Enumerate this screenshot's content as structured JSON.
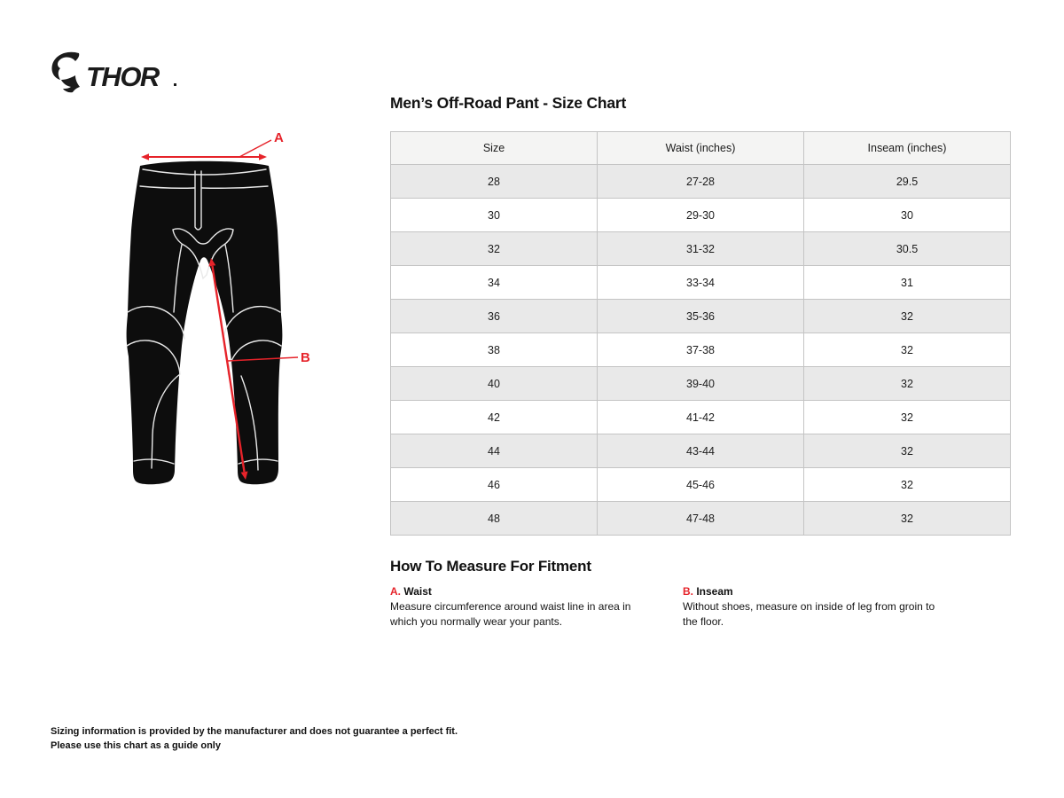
{
  "brand": {
    "name": "THOR",
    "icon": "thor-ram-icon"
  },
  "size_chart": {
    "title": "Men’s Off-Road Pant - Size Chart",
    "columns": [
      "Size",
      "Waist (inches)",
      "Inseam (inches)"
    ],
    "rows": [
      [
        "28",
        "27-28",
        "29.5"
      ],
      [
        "30",
        "29-30",
        "30"
      ],
      [
        "32",
        "31-32",
        "30.5"
      ],
      [
        "34",
        "33-34",
        "31"
      ],
      [
        "36",
        "35-36",
        "32"
      ],
      [
        "38",
        "37-38",
        "32"
      ],
      [
        "40",
        "39-40",
        "32"
      ],
      [
        "42",
        "41-42",
        "32"
      ],
      [
        "44",
        "43-44",
        "32"
      ],
      [
        "46",
        "45-46",
        "32"
      ],
      [
        "48",
        "47-48",
        "32"
      ]
    ]
  },
  "diagram": {
    "label_a": "A",
    "label_b": "B",
    "annotation_color": "#e6232a"
  },
  "how_to_measure": {
    "title": "How To Measure For Fitment",
    "items": [
      {
        "key": "A.",
        "label": "Waist",
        "description": "Measure circumference around waist line in area in which you normally wear your pants."
      },
      {
        "key": "B.",
        "label": "Inseam",
        "description": "Without shoes, measure on inside of leg from groin to the floor."
      }
    ]
  },
  "footer": {
    "line1": "Sizing information is provided by the manufacturer and does not guarantee a perfect fit.",
    "line2": "Please use this chart as a guide only"
  },
  "colors": {
    "accent_red": "#e6232a",
    "header_bg": "#f4f4f3",
    "row_alt": "#e9e9e9",
    "border": "#c4c4c4"
  }
}
